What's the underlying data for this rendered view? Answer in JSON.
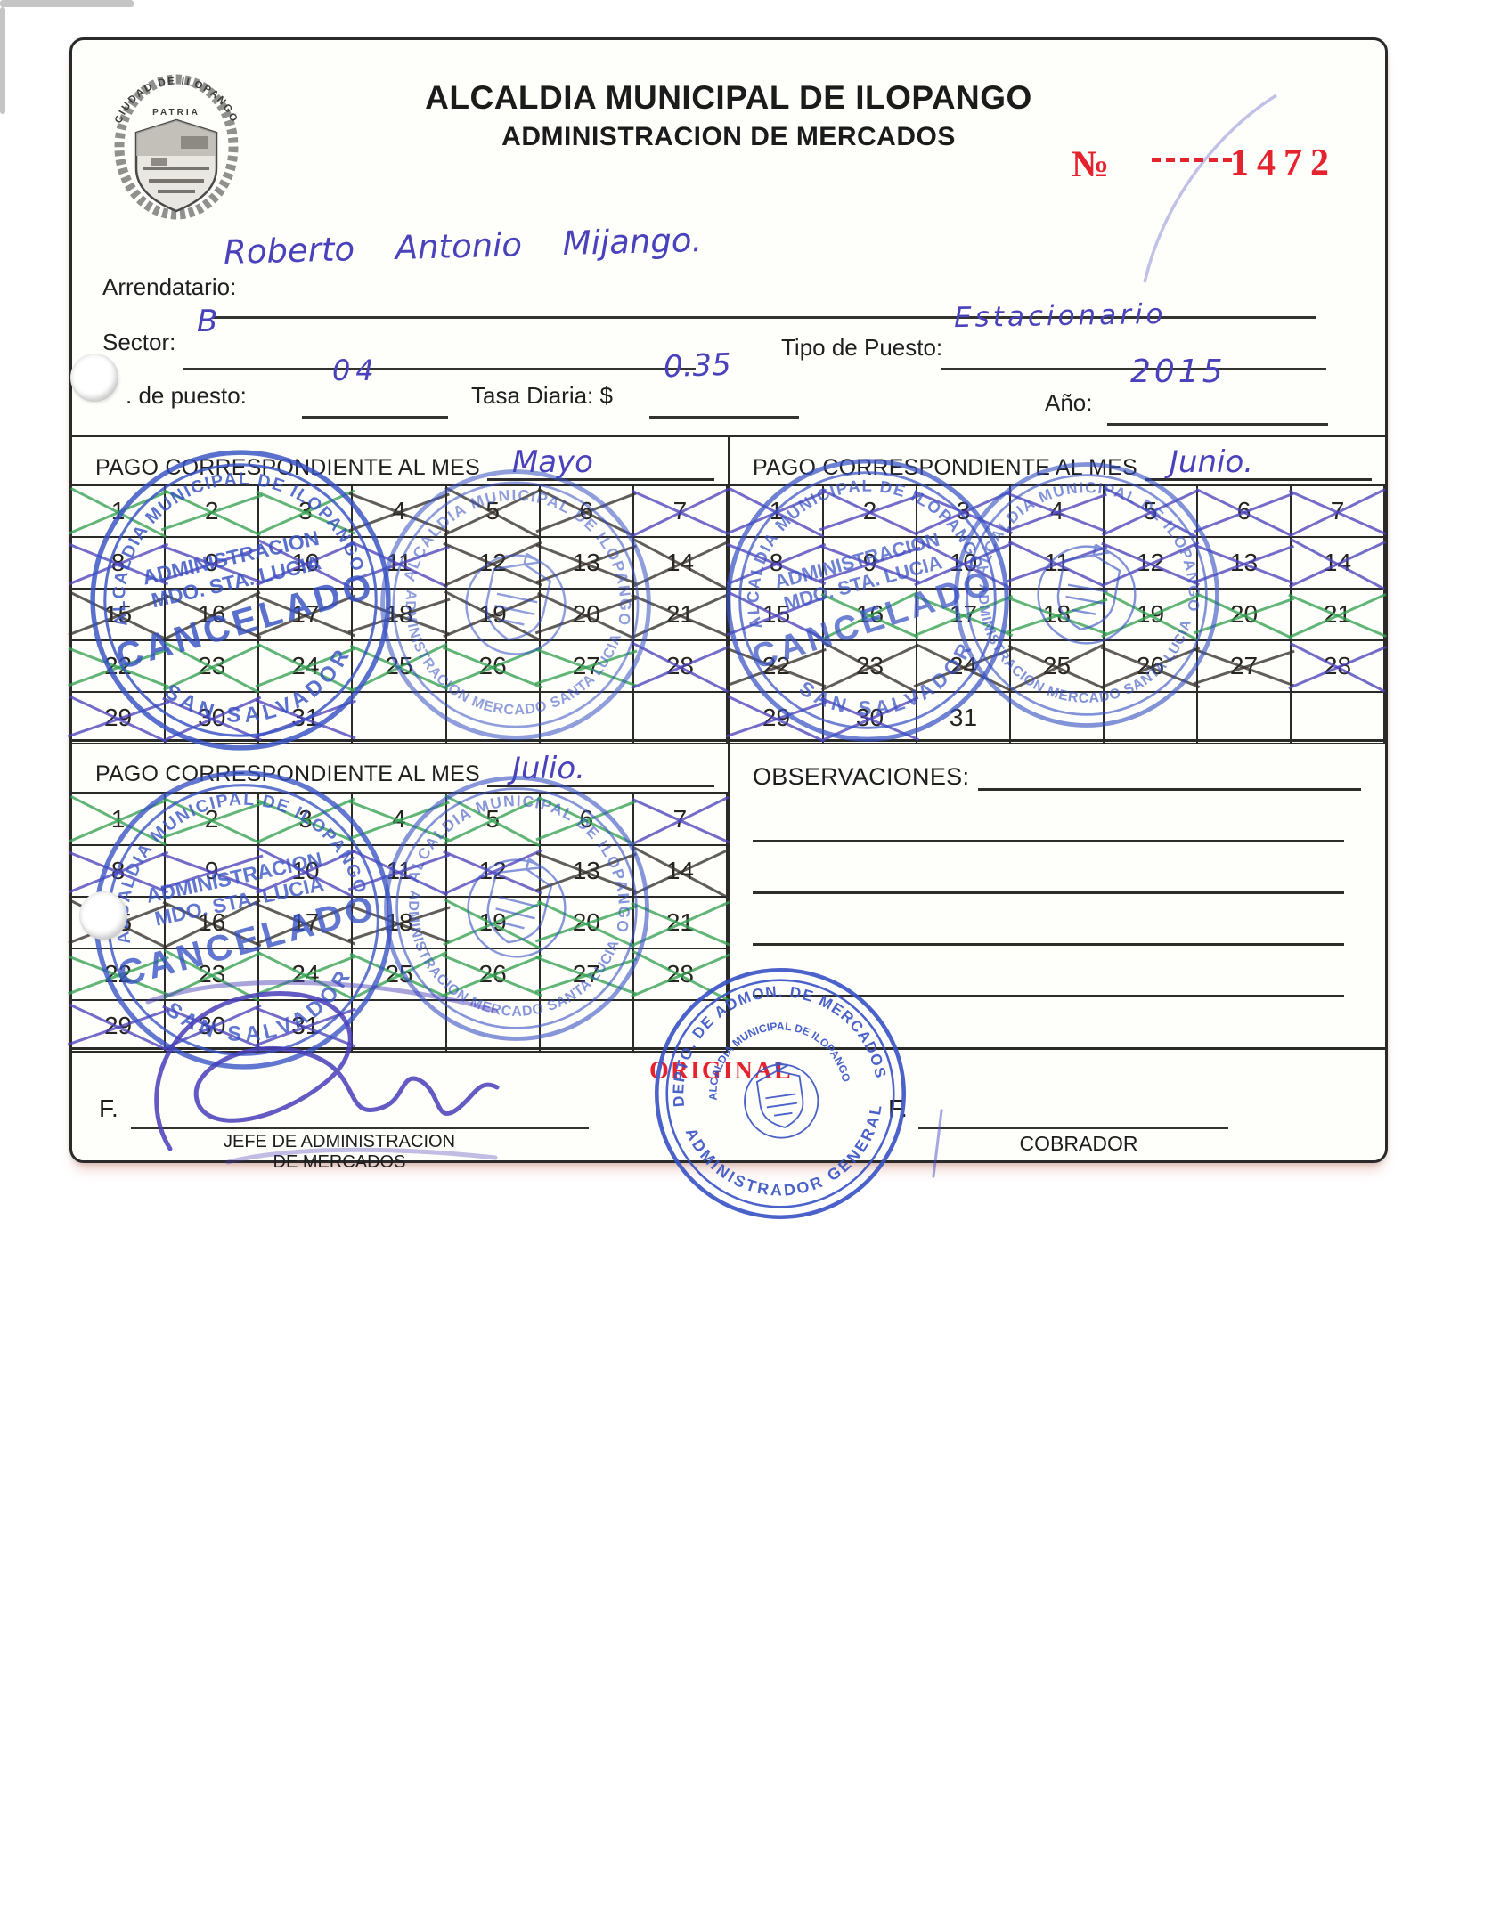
{
  "header": {
    "title_line1": "ALCALDIA MUNICIPAL DE ILOPANGO",
    "title_line2": "ADMINISTRACION DE MERCADOS",
    "number_label": "№",
    "number_value": "1472"
  },
  "logo": {
    "top": "CIUDAD DE ILOPANGO",
    "motto": "PATRIA"
  },
  "fields": {
    "arrendatario_label": "Arrendatario:",
    "arrendatario_value": "Roberto Antonio Mijango.",
    "sector_label": "Sector:",
    "sector_value": "B",
    "tipo_label": "Tipo de Puesto:",
    "tipo_value": "Estacionario",
    "puesto_label": ". de puesto:",
    "puesto_value": "04",
    "tasa_label": "Tasa Diaria: $",
    "tasa_value": "0.35",
    "anio_label": "Año:",
    "anio_value": "2015"
  },
  "calendar": {
    "rows": 5,
    "days_per_row": 7,
    "total_days": 31
  },
  "months": [
    {
      "label": "PAGO CORRESPONDIENTE AL MES",
      "name": "Mayo",
      "crosses": {
        "green": [
          1,
          2,
          3,
          22,
          23,
          24,
          25,
          26,
          27
        ],
        "black": [
          4,
          5,
          6,
          12,
          13,
          14,
          15,
          16,
          17,
          18,
          19,
          20,
          21
        ],
        "blue": [
          7,
          8,
          9,
          10,
          11,
          28,
          29,
          30,
          31
        ]
      }
    },
    {
      "label": "PAGO CORRESPONDIENTE AL MES",
      "name": "Junio.",
      "crosses": {
        "blue": [
          1,
          2,
          3,
          4,
          5,
          6,
          7,
          8,
          9,
          10,
          11,
          12,
          13,
          14,
          15,
          28,
          29,
          30
        ],
        "green": [
          16,
          17,
          18,
          19,
          20,
          21
        ],
        "black": [
          22,
          23,
          24,
          25,
          26,
          27
        ]
      }
    },
    {
      "label": "PAGO CORRESPONDIENTE AL MES",
      "name": "Julio.",
      "crosses": {
        "green": [
          1,
          2,
          3,
          4,
          5,
          6,
          19,
          20,
          21,
          22,
          23,
          24,
          25,
          26,
          27,
          28
        ],
        "blue": [
          7,
          8,
          9,
          10,
          11,
          12,
          29,
          30,
          31
        ],
        "black": [
          13,
          14,
          15,
          16,
          17,
          18
        ]
      }
    }
  ],
  "observaciones": {
    "label": "OBSERVACIONES:"
  },
  "original_label": "ORIGINAL",
  "signatures": {
    "left_f": "F.",
    "left_caption_line1": "JEFE DE ADMINISTRACION",
    "left_caption_line2": "DE MERCADOS",
    "right_f": "F.",
    "right_caption": "COBRADOR"
  },
  "stamps": {
    "cancelado": {
      "ring_top": "ALCALDIA MUNICIPAL DE ILOPANGO",
      "ring_bottom": "SAN SALVADOR",
      "line1": "ADMINISTRACION",
      "line2": "MDO. STA. LUCIA",
      "word": "CANCELADO"
    },
    "seal": {
      "ring_top": "ALCALDIA MUNICIPAL DE ILOPANGO",
      "ring_bottom": "ADMINISTRACION MERCADO SANTA LUCIA"
    },
    "admin": {
      "ring_top": "DEPTO. DE ADMON. DE MERCADOS",
      "ring_bottom": "ADMINISTRADOR GENERAL",
      "inner": "ALCALDIA MUNICIPAL DE ILOPANGO"
    }
  },
  "colors": {
    "accent_red": "#e5232e",
    "stamp_blue": "#3752c4",
    "ink_green": "#33a052",
    "ink_black": "#34302b",
    "ink_blue": "#4b43bb",
    "paper": "#fefefb"
  }
}
